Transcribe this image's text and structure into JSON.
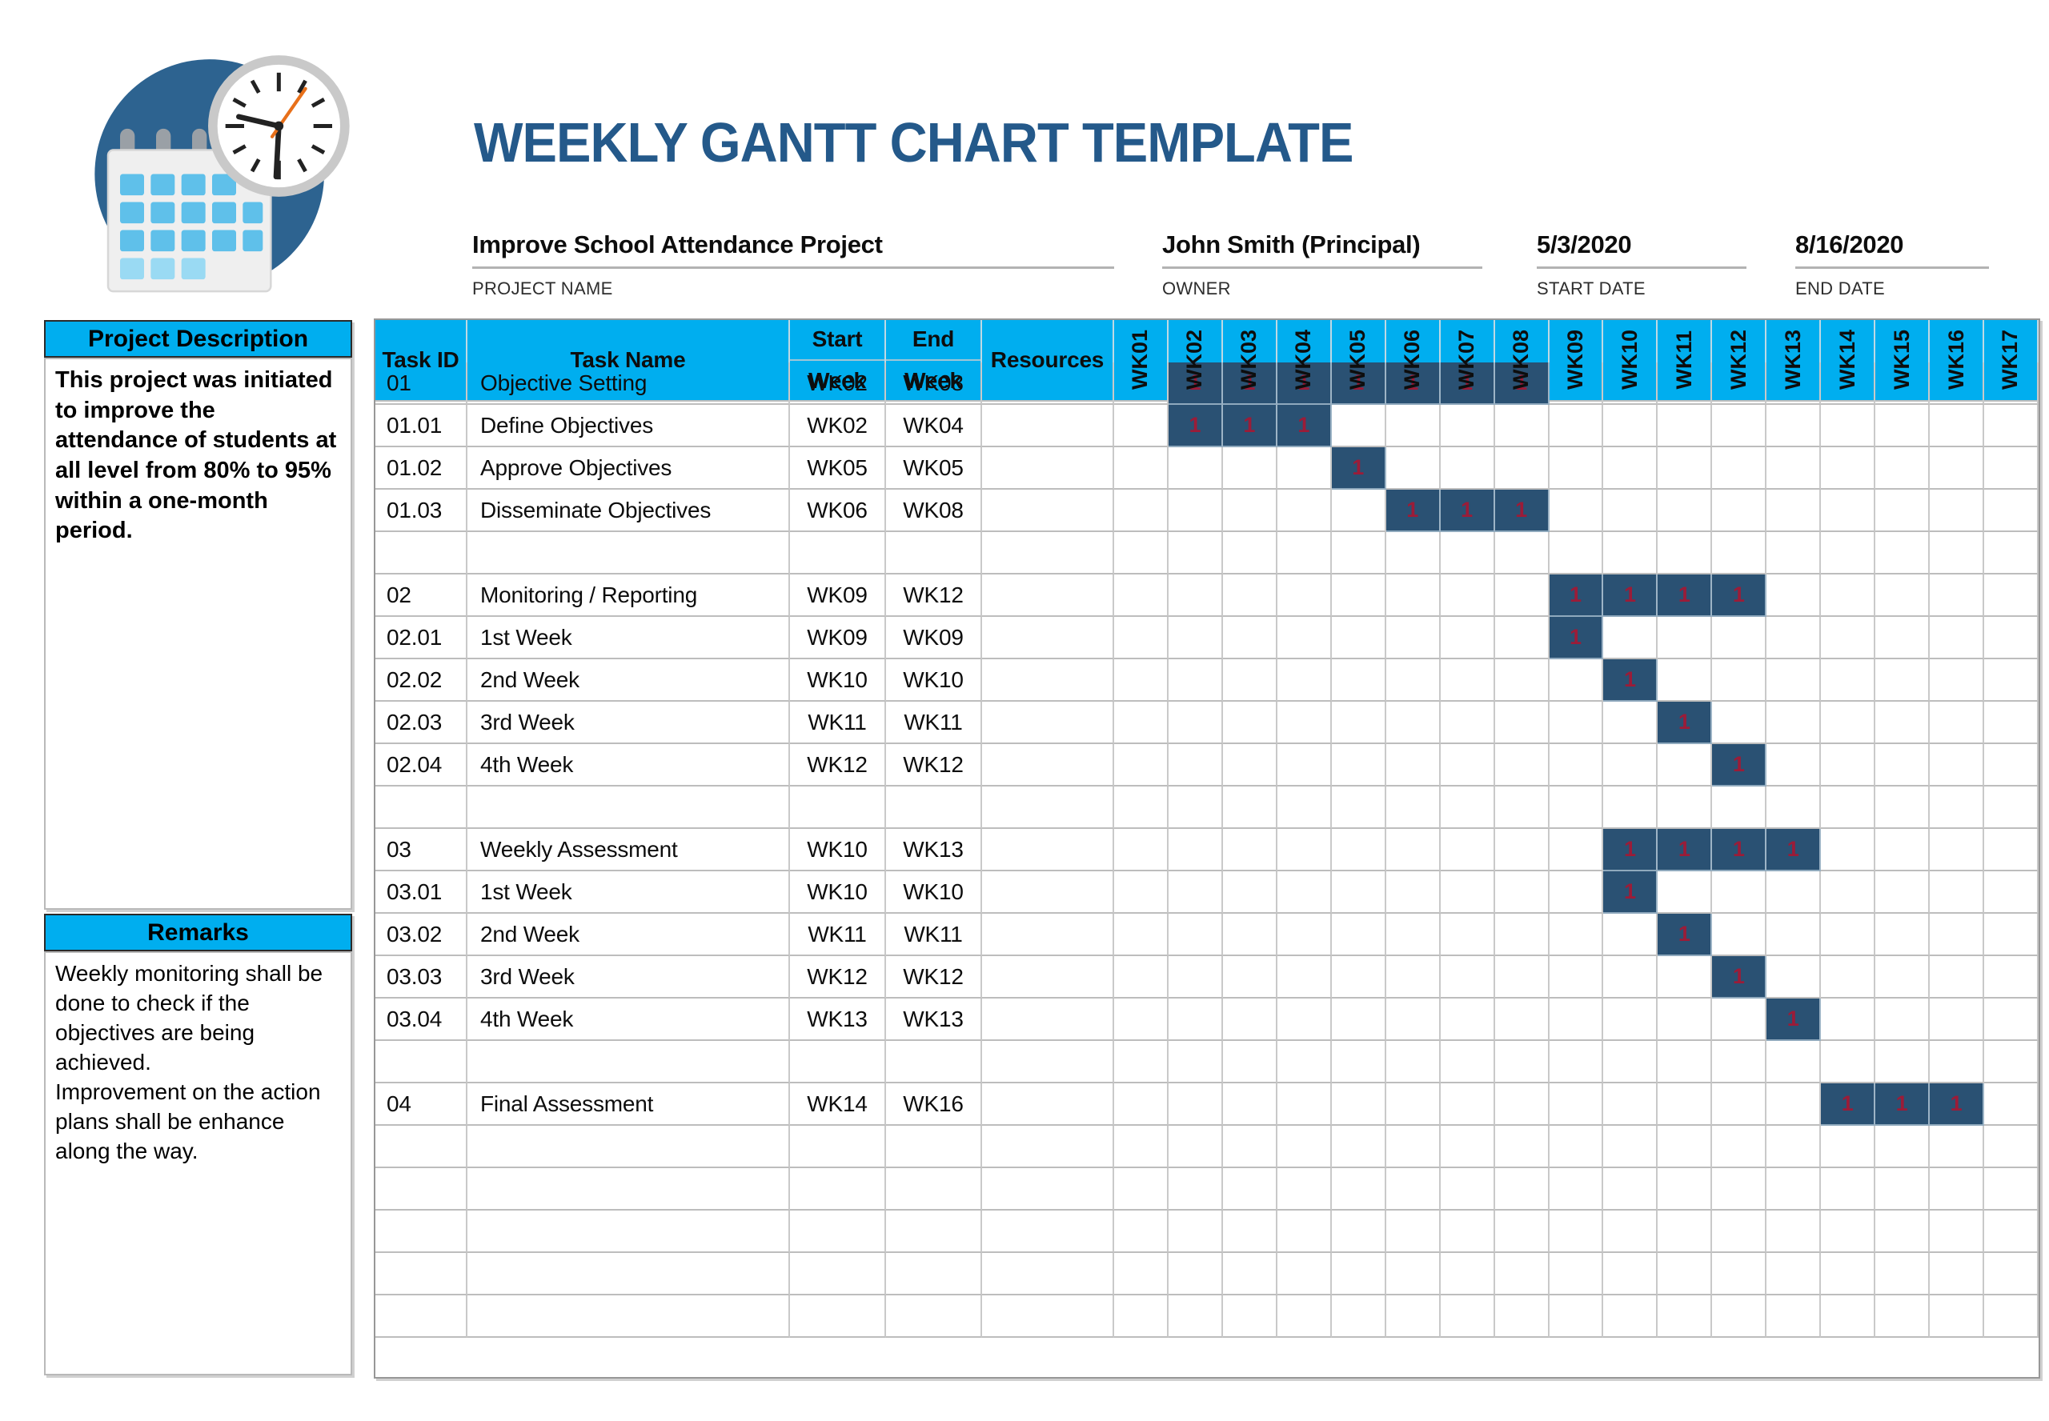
{
  "page": {
    "title": "WEEKLY GANTT CHART TEMPLATE"
  },
  "logo": {
    "icon": "calendar-clock-logo"
  },
  "project_info": {
    "fields": [
      {
        "value": "Improve School Attendance Project",
        "label": "PROJECT NAME"
      },
      {
        "value": "John Smith (Principal)",
        "label": "OWNER"
      },
      {
        "value": "5/3/2020",
        "label": "START DATE"
      },
      {
        "value": "8/16/2020",
        "label": "END DATE"
      }
    ]
  },
  "sidebar": {
    "description": {
      "title": "Project Description",
      "body": "This project was initiated to improve the attendance of students at all level from 80% to 95% within a one-month period."
    },
    "remarks": {
      "title": "Remarks",
      "body": "Weekly monitoring shall be done to check if the objectives are being achieved.\nImprovement on the action plans shall be enhance along the way."
    }
  },
  "table": {
    "headers": [
      {
        "lines": [
          "Task ID"
        ],
        "split": false
      },
      {
        "lines": [
          "Task Name"
        ],
        "split": false
      },
      {
        "lines": [
          "Start",
          "Week"
        ],
        "split": true
      },
      {
        "lines": [
          "End",
          "Week"
        ],
        "split": true
      },
      {
        "lines": [
          "Resources"
        ],
        "split": false
      }
    ],
    "week_columns": [
      "WK01",
      "WK02",
      "WK03",
      "WK04",
      "WK05",
      "WK06",
      "WK07",
      "WK08",
      "WK09",
      "WK10",
      "WK11",
      "WK12",
      "WK13",
      "WK14",
      "WK15",
      "WK16",
      "WK17"
    ],
    "bar_value": "1",
    "rows": [
      {
        "id": "01",
        "name": "Objective Setting",
        "start": "WK02",
        "end": "WK08",
        "resources": "",
        "bar": [
          2,
          8
        ]
      },
      {
        "id": "01.01",
        "name": "Define Objectives",
        "start": "WK02",
        "end": "WK04",
        "resources": "",
        "bar": [
          2,
          4
        ]
      },
      {
        "id": "01.02",
        "name": "Approve Objectives",
        "start": "WK05",
        "end": "WK05",
        "resources": "",
        "bar": [
          5,
          5
        ]
      },
      {
        "id": "01.03",
        "name": "Disseminate Objectives",
        "start": "WK06",
        "end": "WK08",
        "resources": "",
        "bar": [
          6,
          8
        ]
      },
      {
        "id": "",
        "name": "",
        "start": "",
        "end": "",
        "resources": "",
        "bar": null
      },
      {
        "id": "02",
        "name": "Monitoring / Reporting",
        "start": "WK09",
        "end": "WK12",
        "resources": "",
        "bar": [
          9,
          12
        ]
      },
      {
        "id": "02.01",
        "name": "1st Week",
        "start": "WK09",
        "end": "WK09",
        "resources": "",
        "bar": [
          9,
          9
        ]
      },
      {
        "id": "02.02",
        "name": "2nd Week",
        "start": "WK10",
        "end": "WK10",
        "resources": "",
        "bar": [
          10,
          10
        ]
      },
      {
        "id": "02.03",
        "name": "3rd Week",
        "start": "WK11",
        "end": "WK11",
        "resources": "",
        "bar": [
          11,
          11
        ]
      },
      {
        "id": "02.04",
        "name": "4th Week",
        "start": "WK12",
        "end": "WK12",
        "resources": "",
        "bar": [
          12,
          12
        ]
      },
      {
        "id": "",
        "name": "",
        "start": "",
        "end": "",
        "resources": "",
        "bar": null
      },
      {
        "id": "03",
        "name": "Weekly Assessment",
        "start": "WK10",
        "end": "WK13",
        "resources": "",
        "bar": [
          10,
          13
        ]
      },
      {
        "id": "03.01",
        "name": "1st Week",
        "start": "WK10",
        "end": "WK10",
        "resources": "",
        "bar": [
          10,
          10
        ]
      },
      {
        "id": "03.02",
        "name": "2nd Week",
        "start": "WK11",
        "end": "WK11",
        "resources": "",
        "bar": [
          11,
          11
        ]
      },
      {
        "id": "03.03",
        "name": "3rd Week",
        "start": "WK12",
        "end": "WK12",
        "resources": "",
        "bar": [
          12,
          12
        ]
      },
      {
        "id": "03.04",
        "name": "4th Week",
        "start": "WK13",
        "end": "WK13",
        "resources": "",
        "bar": [
          13,
          13
        ]
      },
      {
        "id": "",
        "name": "",
        "start": "",
        "end": "",
        "resources": "",
        "bar": null
      },
      {
        "id": "04",
        "name": "Final Assessment",
        "start": "WK14",
        "end": "WK16",
        "resources": "",
        "bar": [
          14,
          16
        ]
      },
      {
        "id": "",
        "name": "",
        "start": "",
        "end": "",
        "resources": "",
        "bar": null
      },
      {
        "id": "",
        "name": "",
        "start": "",
        "end": "",
        "resources": "",
        "bar": null
      },
      {
        "id": "",
        "name": "",
        "start": "",
        "end": "",
        "resources": "",
        "bar": null
      },
      {
        "id": "",
        "name": "",
        "start": "",
        "end": "",
        "resources": "",
        "bar": null
      },
      {
        "id": "",
        "name": "",
        "start": "",
        "end": "",
        "resources": "",
        "bar": null
      }
    ]
  },
  "chart_data": {
    "type": "table",
    "title": "WEEKLY GANTT CHART TEMPLATE",
    "x": [
      "WK01",
      "WK02",
      "WK03",
      "WK04",
      "WK05",
      "WK06",
      "WK07",
      "WK08",
      "WK09",
      "WK10",
      "WK11",
      "WK12",
      "WK13",
      "WK14",
      "WK15",
      "WK16",
      "WK17"
    ],
    "series": [
      {
        "name": "Objective Setting",
        "values": [
          2,
          8
        ]
      },
      {
        "name": "Define Objectives",
        "values": [
          2,
          4
        ]
      },
      {
        "name": "Approve Objectives",
        "values": [
          5,
          5
        ]
      },
      {
        "name": "Disseminate Objectives",
        "values": [
          6,
          8
        ]
      },
      {
        "name": "Monitoring / Reporting",
        "values": [
          9,
          12
        ]
      },
      {
        "name": "1st Week",
        "values": [
          9,
          9
        ]
      },
      {
        "name": "2nd Week",
        "values": [
          10,
          10
        ]
      },
      {
        "name": "3rd Week",
        "values": [
          11,
          11
        ]
      },
      {
        "name": "4th Week",
        "values": [
          12,
          12
        ]
      },
      {
        "name": "Weekly Assessment",
        "values": [
          10,
          13
        ]
      },
      {
        "name": "1st Week",
        "values": [
          10,
          10
        ]
      },
      {
        "name": "2nd Week",
        "values": [
          11,
          11
        ]
      },
      {
        "name": "3rd Week",
        "values": [
          12,
          12
        ]
      },
      {
        "name": "4th Week",
        "values": [
          13,
          13
        ]
      },
      {
        "name": "Final Assessment",
        "values": [
          14,
          16
        ]
      }
    ]
  },
  "colors": {
    "header_cyan": "#00AEEF",
    "bar_navy": "#2A5173",
    "bar_value_red": "#9B1C38",
    "title_blue": "#24598A"
  }
}
